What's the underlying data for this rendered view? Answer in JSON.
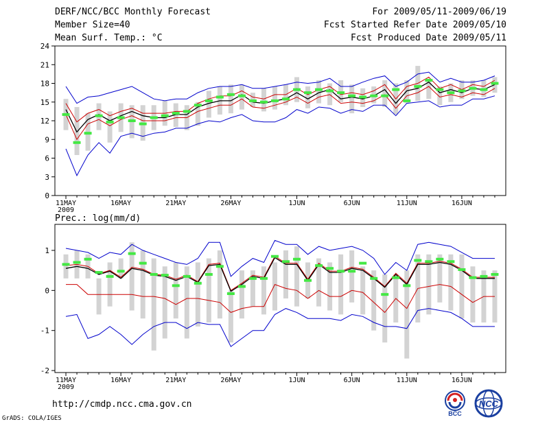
{
  "header": {
    "title": "DERF/NCC/BCC Monthly Forecast",
    "member_size": "Member Size=40",
    "variable": "Mean Surf. Temp.: °C",
    "period": "For 2009/05/11-2009/06/19",
    "start_date": "Fcst Started Refer Date 2009/05/10",
    "produced_date": "Fcst Produced Date 2009/05/11"
  },
  "footer": {
    "url": "http://cmdp.ncc.cma.gov.cn",
    "credit": "GrADS: COLA/IGES",
    "logo_bcc": "BCC",
    "logo_ncc": "NCC"
  },
  "colors": {
    "bar": "#d3d3d3",
    "median": "#44e844",
    "mean": "#000000",
    "pct": "#cc0000",
    "extreme": "#0000cc"
  },
  "chart_data": [
    {
      "type": "box-ensemble",
      "title": "Mean Surf. Temp.: °C",
      "x_tick_labels": [
        "11MAY",
        "16MAY",
        "21MAY",
        "26MAY",
        "1JUN",
        "6JUN",
        "11JUN",
        "16JUN"
      ],
      "x_tick_days": [
        1,
        6,
        11,
        16,
        22,
        27,
        32,
        37
      ],
      "year_label": "2009",
      "xlim": [
        0,
        41
      ],
      "ylim": [
        0,
        24
      ],
      "y_ticks": [
        0,
        3,
        6,
        9,
        12,
        15,
        18,
        21,
        24
      ],
      "days": [
        1,
        2,
        3,
        4,
        5,
        6,
        7,
        8,
        9,
        10,
        11,
        12,
        13,
        14,
        15,
        16,
        17,
        18,
        19,
        20,
        21,
        22,
        23,
        24,
        25,
        26,
        27,
        28,
        29,
        30,
        31,
        32,
        33,
        34,
        35,
        36,
        37,
        38,
        39,
        40
      ],
      "bar_low": [
        10.5,
        6.5,
        7.2,
        10.5,
        8.5,
        10.2,
        9.2,
        8.8,
        10.5,
        11.2,
        11.0,
        10.5,
        11.2,
        12.5,
        13.0,
        13.2,
        13.8,
        14.2,
        13.5,
        13.8,
        14.5,
        15.0,
        14.0,
        14.8,
        14.5,
        15.0,
        13.2,
        14.2,
        14.8,
        14.2,
        13.0,
        14.8,
        15.2,
        15.5,
        14.5,
        15.0,
        15.5,
        16.0,
        15.8,
        16.5
      ],
      "bar_high": [
        15.5,
        14.2,
        13.2,
        14.8,
        13.5,
        14.8,
        14.5,
        14.5,
        14.5,
        15.2,
        14.8,
        14.5,
        15.0,
        16.8,
        17.5,
        17.8,
        17.8,
        16.5,
        17.2,
        17.5,
        17.8,
        19.0,
        17.5,
        18.5,
        18.0,
        18.5,
        17.8,
        17.2,
        17.5,
        18.5,
        18.0,
        18.5,
        20.8,
        18.5,
        17.5,
        18.0,
        18.5,
        18.5,
        18.5,
        19.0
      ],
      "median": [
        13.0,
        8.5,
        10.0,
        12.8,
        11.8,
        12.5,
        12.0,
        11.5,
        12.5,
        12.8,
        13.2,
        13.5,
        14.5,
        15.2,
        15.8,
        16.2,
        16.0,
        15.2,
        15.0,
        15.2,
        15.5,
        17.0,
        16.5,
        17.0,
        16.8,
        16.5,
        16.0,
        15.8,
        16.0,
        16.0,
        17.0,
        15.2,
        17.5,
        18.5,
        17.0,
        16.5,
        16.8,
        17.2,
        17.0,
        18.0
      ],
      "mean": [
        13.8,
        10.2,
        12.2,
        13.0,
        12.0,
        12.8,
        13.5,
        12.8,
        12.5,
        12.5,
        13.0,
        13.0,
        14.2,
        14.8,
        15.2,
        15.2,
        16.2,
        15.0,
        14.8,
        15.2,
        15.5,
        16.5,
        15.5,
        16.5,
        17.0,
        15.5,
        15.8,
        15.5,
        16.0,
        17.0,
        14.8,
        16.8,
        17.2,
        18.2,
        16.5,
        17.0,
        16.5,
        17.2,
        17.0,
        17.8
      ],
      "p_high": [
        14.8,
        11.8,
        13.2,
        13.8,
        12.8,
        13.5,
        14.0,
        13.2,
        13.2,
        13.2,
        13.5,
        13.5,
        14.8,
        15.5,
        16.0,
        16.0,
        16.8,
        15.8,
        15.5,
        16.2,
        16.2,
        17.2,
        16.2,
        17.0,
        17.5,
        16.2,
        16.5,
        16.2,
        16.8,
        17.8,
        15.5,
        17.5,
        18.0,
        19.0,
        17.2,
        17.8,
        17.0,
        17.8,
        17.5,
        18.5
      ],
      "p_low": [
        13.0,
        9.0,
        11.5,
        12.2,
        11.2,
        12.2,
        12.8,
        12.0,
        12.0,
        12.0,
        12.5,
        12.5,
        13.5,
        14.0,
        14.5,
        14.5,
        15.5,
        14.2,
        14.0,
        14.5,
        15.0,
        15.8,
        14.8,
        15.8,
        16.2,
        14.8,
        15.0,
        14.8,
        15.2,
        16.2,
        14.0,
        16.0,
        16.5,
        17.5,
        15.8,
        16.2,
        15.8,
        16.5,
        16.2,
        17.2
      ],
      "max": [
        17.5,
        14.8,
        15.8,
        16.0,
        16.5,
        17.0,
        17.5,
        16.5,
        15.5,
        15.2,
        15.5,
        15.5,
        16.5,
        17.2,
        17.5,
        17.5,
        17.8,
        17.2,
        17.2,
        17.5,
        17.8,
        18.2,
        18.0,
        18.2,
        18.8,
        17.5,
        17.5,
        18.2,
        18.8,
        19.2,
        17.5,
        18.2,
        19.5,
        19.8,
        18.2,
        18.8,
        18.2,
        18.2,
        18.5,
        19.2
      ],
      "min": [
        7.5,
        3.2,
        6.5,
        8.5,
        6.8,
        9.5,
        10.0,
        9.5,
        10.0,
        10.2,
        10.8,
        10.8,
        11.5,
        12.0,
        11.8,
        12.5,
        13.0,
        12.0,
        11.8,
        11.8,
        12.5,
        13.8,
        13.2,
        14.2,
        14.0,
        13.2,
        13.8,
        13.5,
        14.5,
        14.5,
        12.8,
        14.8,
        15.0,
        15.2,
        14.2,
        14.5,
        14.5,
        15.5,
        15.5,
        16.0
      ]
    },
    {
      "type": "box-ensemble",
      "title": "Prec.: log(mm/d)",
      "x_tick_labels": [
        "11MAY",
        "16MAY",
        "21MAY",
        "26MAY",
        "1JUN",
        "6JUN",
        "11JUN",
        "16JUN"
      ],
      "x_tick_days": [
        1,
        6,
        11,
        16,
        22,
        27,
        32,
        37
      ],
      "year_label": "2009",
      "xlim": [
        0,
        41
      ],
      "ylim": [
        -2.05,
        1.65
      ],
      "y_ticks": [
        -2,
        -1,
        0,
        1
      ],
      "days": [
        1,
        2,
        3,
        4,
        5,
        6,
        7,
        8,
        9,
        10,
        11,
        12,
        13,
        14,
        15,
        16,
        17,
        18,
        19,
        20,
        21,
        22,
        23,
        24,
        25,
        26,
        27,
        28,
        29,
        30,
        31,
        32,
        33,
        34,
        35,
        36,
        37,
        38,
        39,
        40
      ],
      "bar_low": [
        0.3,
        0.3,
        0.3,
        -0.6,
        -0.4,
        0.3,
        -0.5,
        -0.7,
        -1.5,
        -1.2,
        -0.7,
        -1.2,
        -0.9,
        -0.8,
        -0.7,
        -1.3,
        -0.7,
        -0.4,
        -0.6,
        -0.5,
        -0.2,
        -0.4,
        -0.2,
        -0.4,
        -0.5,
        -0.6,
        -0.3,
        -0.6,
        -1.0,
        -1.3,
        -0.8,
        -1.7,
        -0.8,
        -0.6,
        -0.3,
        -0.5,
        -0.7,
        -0.8,
        -0.8,
        -0.8
      ],
      "bar_high": [
        0.9,
        1.0,
        0.9,
        0.3,
        0.7,
        0.8,
        1.2,
        1.0,
        0.8,
        0.6,
        0.7,
        0.6,
        0.7,
        0.8,
        1.0,
        0.0,
        0.5,
        0.5,
        0.6,
        0.7,
        1.0,
        1.1,
        0.7,
        0.8,
        0.7,
        0.9,
        1.0,
        0.6,
        0.5,
        0.4,
        0.4,
        0.5,
        0.9,
        0.9,
        0.9,
        0.9,
        0.9,
        0.6,
        0.5,
        0.5
      ],
      "median": [
        0.65,
        0.7,
        0.78,
        0.45,
        0.35,
        0.48,
        0.92,
        0.68,
        0.4,
        0.38,
        0.12,
        0.35,
        0.18,
        0.4,
        0.6,
        -0.08,
        0.1,
        0.3,
        0.3,
        0.85,
        0.72,
        0.78,
        0.25,
        0.62,
        0.55,
        0.48,
        0.48,
        0.68,
        0.3,
        -0.1,
        0.32,
        0.12,
        0.75,
        0.72,
        0.78,
        0.72,
        0.52,
        0.32,
        0.35,
        0.4
      ],
      "mean": [
        0.55,
        0.6,
        0.55,
        0.4,
        0.48,
        0.3,
        0.55,
        0.5,
        0.38,
        0.35,
        0.25,
        0.35,
        0.2,
        0.62,
        0.65,
        -0.02,
        0.15,
        0.35,
        0.3,
        0.82,
        0.65,
        0.65,
        0.25,
        0.65,
        0.45,
        0.45,
        0.55,
        0.5,
        0.3,
        0.08,
        0.4,
        0.15,
        0.65,
        0.65,
        0.7,
        0.65,
        0.5,
        0.3,
        0.3,
        0.3
      ],
      "p_high": [
        0.62,
        0.65,
        0.6,
        0.42,
        0.5,
        0.33,
        0.58,
        0.53,
        0.4,
        0.38,
        0.28,
        0.38,
        0.22,
        0.65,
        0.68,
        0.0,
        0.18,
        0.38,
        0.33,
        0.85,
        0.68,
        0.68,
        0.28,
        0.68,
        0.48,
        0.48,
        0.58,
        0.53,
        0.33,
        0.1,
        0.43,
        0.18,
        0.68,
        0.68,
        0.73,
        0.68,
        0.53,
        0.33,
        0.33,
        0.33
      ],
      "p_low": [
        0.15,
        0.15,
        -0.1,
        -0.1,
        -0.1,
        -0.1,
        -0.1,
        -0.15,
        -0.15,
        -0.2,
        -0.35,
        -0.2,
        -0.2,
        -0.25,
        -0.3,
        -0.55,
        -0.45,
        -0.4,
        -0.4,
        0.15,
        0.05,
        0.0,
        -0.2,
        0.0,
        -0.15,
        -0.15,
        0.0,
        -0.05,
        -0.3,
        -0.55,
        -0.2,
        -0.45,
        0.05,
        0.1,
        0.15,
        0.1,
        -0.1,
        -0.3,
        -0.15,
        -0.15
      ],
      "max": [
        1.05,
        1.0,
        0.95,
        0.8,
        0.95,
        0.9,
        1.15,
        1.0,
        0.9,
        0.8,
        0.7,
        0.65,
        0.8,
        1.2,
        1.2,
        0.35,
        0.6,
        0.8,
        0.7,
        1.25,
        1.15,
        1.15,
        0.9,
        1.1,
        1.0,
        1.05,
        1.1,
        1.0,
        0.8,
        0.4,
        0.7,
        0.5,
        1.15,
        1.2,
        1.15,
        1.1,
        0.95,
        0.8,
        0.8,
        0.8
      ],
      "min": [
        -0.65,
        -0.6,
        -1.2,
        -1.1,
        -0.9,
        -1.1,
        -1.35,
        -1.1,
        -0.9,
        -0.8,
        -0.8,
        -0.95,
        -0.8,
        -0.85,
        -0.85,
        -1.4,
        -1.2,
        -1.0,
        -1.0,
        -0.6,
        -0.45,
        -0.55,
        -0.7,
        -0.7,
        -0.7,
        -0.75,
        -0.6,
        -0.65,
        -0.8,
        -0.9,
        -0.9,
        -0.95,
        -0.5,
        -0.45,
        -0.5,
        -0.55,
        -0.7,
        -0.9,
        -0.9,
        -0.9
      ]
    }
  ]
}
